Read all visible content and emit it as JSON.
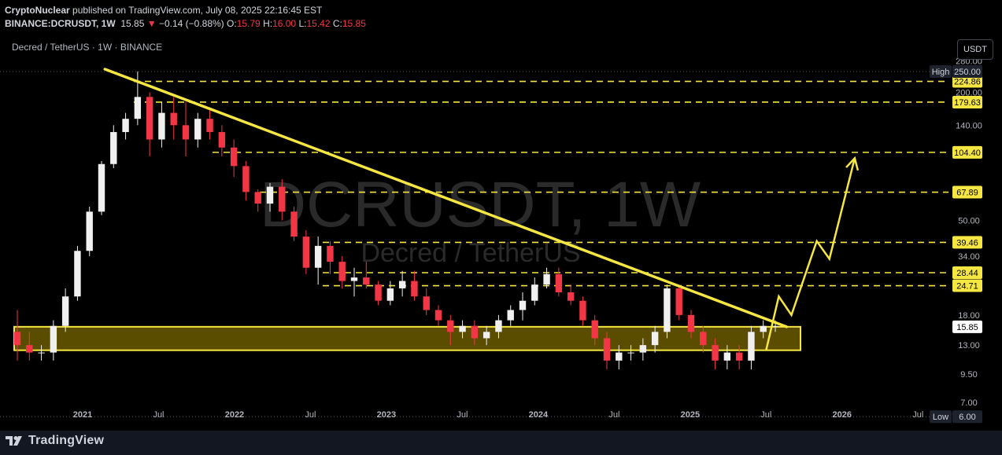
{
  "header": {
    "publisher": "CryptoNuclear",
    "published_text": "published on TradingView.com, July 08, 2025 22:16:45 EST",
    "symbol": "BINANCE:DCRUSDT, 1W",
    "last": "15.85",
    "change_arrow": "▼",
    "change": "−0.14 (−0.88%)",
    "o_label": "O:",
    "o_val": "15.79",
    "h_label": "H:",
    "h_val": "16.00",
    "l_label": "L:",
    "l_val": "15.42",
    "c_label": "C:",
    "c_val": "15.85"
  },
  "subtitle": "Decred / TetherUS · 1W · BINANCE",
  "currency_button": "USDT",
  "watermark": {
    "big": "DCRUSDT, 1W",
    "small": "Decred / TetherUS"
  },
  "footer": {
    "brand": "TradingView"
  },
  "colors": {
    "background": "#000000",
    "bull": "#f0f0f0",
    "bear": "#f23645",
    "trend": "#f5e642",
    "zone_fill": "#6b5a00",
    "zone_stroke": "#f5e642",
    "label_bg": "#f5e642",
    "label_text": "#000000"
  },
  "chart_data": {
    "type": "candlestick",
    "scale": "log",
    "x_tick_labels": [
      "2021",
      "Jul",
      "2022",
      "Jul",
      "2023",
      "Jul",
      "2024",
      "Jul",
      "2025",
      "Jul",
      "2026",
      "Jul"
    ],
    "y_tick_labels": [
      "280.00",
      "200.00",
      "140.00",
      "50.00",
      "34.00",
      "18.00",
      "13.00",
      "9.50",
      "7.00"
    ],
    "high_label": "High",
    "high_value": "250.00",
    "low_label": "Low",
    "low_value": "6.00",
    "current_price": "15.85",
    "levels": [
      "224.86",
      "179.63",
      "104.40",
      "67.89",
      "39.46",
      "28.44",
      "24.71"
    ],
    "support_zone": [
      12.3,
      15.85
    ],
    "trendline": {
      "start": [
        "2021-04",
        250
      ],
      "end": [
        "2025-08",
        15.85
      ]
    },
    "projection_path": [
      [
        "2025-07",
        12.3
      ],
      [
        "2025-08",
        22
      ],
      [
        "2025-09",
        18
      ],
      [
        "2025-11",
        40
      ],
      [
        "2025-12",
        33
      ],
      [
        "2026-02",
        98
      ]
    ],
    "ohlc_approx": [
      [
        15,
        19,
        11,
        13
      ],
      [
        13,
        15,
        11,
        12
      ],
      [
        12,
        13,
        11,
        12
      ],
      [
        12,
        17,
        11,
        16
      ],
      [
        16,
        24,
        15,
        22
      ],
      [
        22,
        38,
        21,
        36
      ],
      [
        36,
        58,
        34,
        55
      ],
      [
        55,
        95,
        53,
        92
      ],
      [
        92,
        140,
        88,
        130
      ],
      [
        130,
        160,
        120,
        150
      ],
      [
        150,
        250,
        140,
        190
      ],
      [
        190,
        200,
        100,
        120
      ],
      [
        120,
        180,
        110,
        160
      ],
      [
        160,
        190,
        120,
        140
      ],
      [
        140,
        180,
        100,
        120
      ],
      [
        120,
        160,
        110,
        150
      ],
      [
        150,
        170,
        120,
        130
      ],
      [
        130,
        140,
        100,
        110
      ],
      [
        110,
        120,
        80,
        90
      ],
      [
        90,
        95,
        62,
        68
      ],
      [
        68,
        70,
        55,
        60
      ],
      [
        60,
        75,
        55,
        72
      ],
      [
        72,
        78,
        50,
        55
      ],
      [
        55,
        58,
        40,
        42
      ],
      [
        42,
        45,
        28,
        30
      ],
      [
        30,
        42,
        25,
        38
      ],
      [
        38,
        40,
        28,
        32
      ],
      [
        32,
        34,
        24,
        26
      ],
      [
        26,
        30,
        22,
        27
      ],
      [
        27,
        32,
        24,
        25
      ],
      [
        25,
        26,
        20,
        21
      ],
      [
        21,
        26,
        20,
        24
      ],
      [
        24,
        29,
        22,
        26
      ],
      [
        26,
        29,
        21,
        22
      ],
      [
        22,
        24,
        18,
        19
      ],
      [
        19,
        20,
        16,
        17
      ],
      [
        17,
        18,
        13,
        15
      ],
      [
        15,
        17,
        14,
        16
      ],
      [
        16,
        17,
        13,
        14
      ],
      [
        14,
        16,
        13,
        15
      ],
      [
        15,
        18,
        14,
        17
      ],
      [
        17,
        20,
        16,
        19
      ],
      [
        19,
        23,
        17,
        21
      ],
      [
        21,
        27,
        20,
        25
      ],
      [
        25,
        30,
        24,
        28
      ],
      [
        28,
        30,
        22,
        23
      ],
      [
        23,
        25,
        20,
        21
      ],
      [
        21,
        22,
        16,
        17
      ],
      [
        17,
        18,
        13,
        14
      ],
      [
        14,
        15,
        10,
        11
      ],
      [
        11,
        13,
        10,
        12
      ],
      [
        12,
        13,
        11,
        12
      ],
      [
        12,
        14,
        11,
        13
      ],
      [
        13,
        16,
        12,
        15
      ],
      [
        15,
        25,
        14,
        24
      ],
      [
        24,
        25,
        17,
        18
      ],
      [
        18,
        19,
        14,
        15
      ],
      [
        15,
        16,
        12,
        13
      ],
      [
        13,
        14,
        10,
        11
      ],
      [
        11,
        13,
        10,
        12
      ],
      [
        12,
        13,
        10,
        11
      ],
      [
        11,
        16,
        10,
        15
      ],
      [
        15,
        17,
        14,
        16
      ],
      [
        16,
        17,
        15,
        16
      ]
    ]
  }
}
